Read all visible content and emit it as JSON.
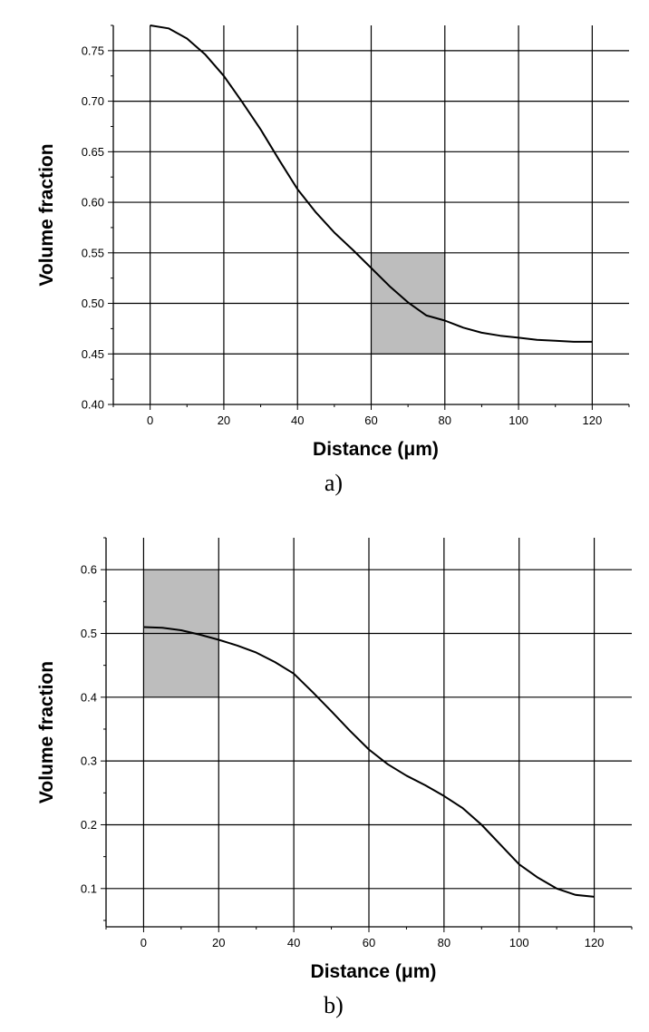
{
  "chart_data": [
    {
      "type": "line",
      "panel_label": "a)",
      "xlabel": "Distance (μm)",
      "ylabel": "Volume fraction",
      "xlim": [
        -10,
        130
      ],
      "ylim": [
        0.4,
        0.775
      ],
      "xticks": [
        0,
        20,
        40,
        60,
        80,
        100,
        120
      ],
      "xtick_labels": [
        "0",
        "20",
        "40",
        "60",
        "80",
        "100",
        "120"
      ],
      "yticks": [
        0.4,
        0.45,
        0.5,
        0.55,
        0.6,
        0.65,
        0.7,
        0.75
      ],
      "ytick_labels": [
        "0.40",
        "0.45",
        "0.50",
        "0.55",
        "0.60",
        "0.65",
        "0.70",
        "0.75"
      ],
      "grid": true,
      "line_color": "#000000",
      "highlight_color": "#bdbdbd",
      "highlight_region": {
        "x": [
          60,
          80
        ],
        "y": [
          0.45,
          0.55
        ]
      },
      "series": [
        {
          "x": [
            0,
            5,
            10,
            15,
            20,
            25,
            30,
            35,
            40,
            45,
            50,
            55,
            60,
            65,
            70,
            75,
            80,
            85,
            90,
            95,
            100,
            105,
            110,
            115,
            120
          ],
          "y": [
            0.775,
            0.772,
            0.762,
            0.746,
            0.725,
            0.699,
            0.672,
            0.642,
            0.613,
            0.59,
            0.57,
            0.553,
            0.535,
            0.517,
            0.501,
            0.488,
            0.483,
            0.476,
            0.471,
            0.468,
            0.466,
            0.464,
            0.463,
            0.462,
            0.462
          ]
        }
      ]
    },
    {
      "type": "line",
      "panel_label": "b)",
      "xlabel": "Distance (μm)",
      "ylabel": "Volume fraction",
      "xlim": [
        -10,
        130
      ],
      "ylim": [
        0.04,
        0.65
      ],
      "xticks": [
        0,
        20,
        40,
        60,
        80,
        100,
        120
      ],
      "xtick_labels": [
        "0",
        "20",
        "40",
        "60",
        "80",
        "100",
        "120"
      ],
      "yticks": [
        0.1,
        0.2,
        0.3,
        0.4,
        0.5,
        0.6
      ],
      "ytick_labels": [
        "0.1",
        "0.2",
        "0.3",
        "0.4",
        "0.5",
        "0.6"
      ],
      "grid": true,
      "line_color": "#000000",
      "highlight_color": "#bdbdbd",
      "highlight_region": {
        "x": [
          0,
          20
        ],
        "y": [
          0.4,
          0.6
        ]
      },
      "series": [
        {
          "x": [
            0,
            5,
            10,
            15,
            20,
            25,
            30,
            35,
            40,
            45,
            50,
            55,
            60,
            65,
            70,
            75,
            80,
            85,
            90,
            95,
            100,
            105,
            110,
            115,
            120
          ],
          "y": [
            0.51,
            0.509,
            0.505,
            0.498,
            0.49,
            0.481,
            0.47,
            0.455,
            0.437,
            0.408,
            0.378,
            0.347,
            0.318,
            0.295,
            0.277,
            0.262,
            0.245,
            0.226,
            0.2,
            0.169,
            0.138,
            0.117,
            0.1,
            0.09,
            0.087
          ]
        }
      ]
    }
  ]
}
